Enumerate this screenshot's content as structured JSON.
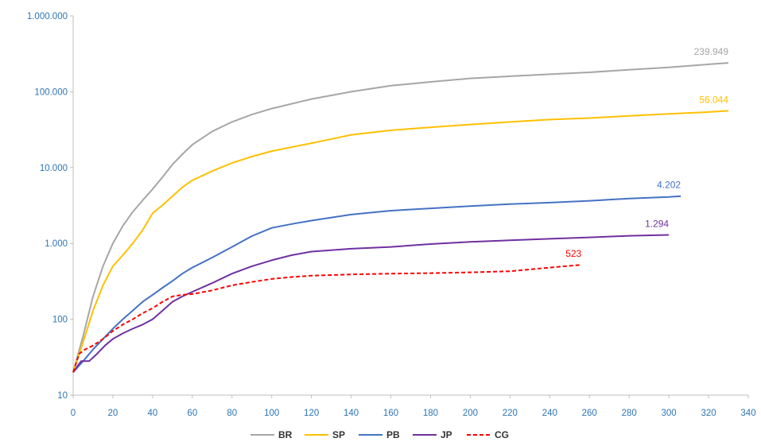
{
  "chart_data": {
    "type": "line",
    "title": "",
    "xlabel": "",
    "ylabel": "",
    "xlim": [
      0,
      340
    ],
    "ylim": [
      10,
      1000000
    ],
    "yscale": "log",
    "grid": false,
    "legend_position": "bottom",
    "x_ticks": [
      "0",
      "20",
      "40",
      "60",
      "80",
      "100",
      "120",
      "140",
      "160",
      "180",
      "200",
      "220",
      "240",
      "260",
      "280",
      "300",
      "320",
      "340"
    ],
    "y_ticks": [
      "10",
      "100",
      "1.000",
      "10.000",
      "100.000",
      "1.000.000"
    ],
    "y_tick_values": [
      10,
      100,
      1000,
      10000,
      100000,
      1000000
    ],
    "series": [
      {
        "name": "BR",
        "color": "#a6a6a6",
        "dash": "solid",
        "end_label": "239.949",
        "points": [
          [
            0,
            20
          ],
          [
            5,
            60
          ],
          [
            10,
            200
          ],
          [
            15,
            500
          ],
          [
            20,
            1000
          ],
          [
            25,
            1700
          ],
          [
            30,
            2600
          ],
          [
            35,
            3700
          ],
          [
            40,
            5200
          ],
          [
            45,
            7500
          ],
          [
            50,
            11000
          ],
          [
            55,
            15000
          ],
          [
            60,
            20000
          ],
          [
            70,
            30000
          ],
          [
            80,
            40000
          ],
          [
            90,
            50000
          ],
          [
            100,
            60000
          ],
          [
            120,
            80000
          ],
          [
            140,
            100000
          ],
          [
            160,
            120000
          ],
          [
            180,
            135000
          ],
          [
            200,
            150000
          ],
          [
            220,
            160000
          ],
          [
            240,
            170000
          ],
          [
            260,
            180000
          ],
          [
            280,
            195000
          ],
          [
            300,
            210000
          ],
          [
            320,
            230000
          ],
          [
            330,
            239949
          ]
        ]
      },
      {
        "name": "SP",
        "color": "#ffc000",
        "dash": "solid",
        "end_label": "56.044",
        "points": [
          [
            0,
            20
          ],
          [
            5,
            50
          ],
          [
            10,
            130
          ],
          [
            15,
            280
          ],
          [
            20,
            500
          ],
          [
            25,
            700
          ],
          [
            30,
            1000
          ],
          [
            35,
            1500
          ],
          [
            40,
            2500
          ],
          [
            45,
            3200
          ],
          [
            50,
            4200
          ],
          [
            55,
            5500
          ],
          [
            60,
            6800
          ],
          [
            70,
            9000
          ],
          [
            80,
            11500
          ],
          [
            90,
            14000
          ],
          [
            100,
            16500
          ],
          [
            120,
            21000
          ],
          [
            134,
            25000
          ],
          [
            140,
            27000
          ],
          [
            160,
            31000
          ],
          [
            180,
            34000
          ],
          [
            200,
            37000
          ],
          [
            220,
            40000
          ],
          [
            240,
            43000
          ],
          [
            260,
            45000
          ],
          [
            280,
            48000
          ],
          [
            300,
            51000
          ],
          [
            320,
            54000
          ],
          [
            330,
            56044
          ]
        ]
      },
      {
        "name": "PB",
        "color": "#4472c4",
        "dash": "solid",
        "end_label": "4.202",
        "points": [
          [
            0,
            20
          ],
          [
            5,
            28
          ],
          [
            10,
            40
          ],
          [
            15,
            55
          ],
          [
            20,
            75
          ],
          [
            25,
            100
          ],
          [
            30,
            130
          ],
          [
            35,
            170
          ],
          [
            40,
            210
          ],
          [
            45,
            260
          ],
          [
            50,
            320
          ],
          [
            55,
            400
          ],
          [
            60,
            480
          ],
          [
            70,
            650
          ],
          [
            80,
            900
          ],
          [
            90,
            1250
          ],
          [
            100,
            1600
          ],
          [
            110,
            1800
          ],
          [
            120,
            2000
          ],
          [
            140,
            2400
          ],
          [
            160,
            2700
          ],
          [
            180,
            2900
          ],
          [
            200,
            3100
          ],
          [
            220,
            3300
          ],
          [
            240,
            3450
          ],
          [
            260,
            3650
          ],
          [
            280,
            3900
          ],
          [
            300,
            4100
          ],
          [
            306,
            4202
          ]
        ]
      },
      {
        "name": "JP",
        "color": "#7030a0",
        "dash": "solid",
        "end_label": "1.294",
        "points": [
          [
            0,
            20
          ],
          [
            4,
            28
          ],
          [
            8,
            28
          ],
          [
            12,
            35
          ],
          [
            16,
            45
          ],
          [
            20,
            55
          ],
          [
            25,
            65
          ],
          [
            30,
            75
          ],
          [
            35,
            85
          ],
          [
            40,
            100
          ],
          [
            45,
            130
          ],
          [
            50,
            170
          ],
          [
            55,
            200
          ],
          [
            60,
            230
          ],
          [
            70,
            300
          ],
          [
            80,
            400
          ],
          [
            90,
            500
          ],
          [
            100,
            600
          ],
          [
            110,
            700
          ],
          [
            120,
            780
          ],
          [
            140,
            850
          ],
          [
            160,
            900
          ],
          [
            180,
            980
          ],
          [
            200,
            1050
          ],
          [
            220,
            1100
          ],
          [
            240,
            1150
          ],
          [
            260,
            1200
          ],
          [
            280,
            1260
          ],
          [
            300,
            1294
          ]
        ]
      },
      {
        "name": "CG",
        "color": "#ff0000",
        "dash": "dashed",
        "end_label": "523",
        "points": [
          [
            0,
            20
          ],
          [
            3,
            35
          ],
          [
            6,
            40
          ],
          [
            10,
            45
          ],
          [
            15,
            55
          ],
          [
            20,
            70
          ],
          [
            25,
            85
          ],
          [
            30,
            100
          ],
          [
            35,
            120
          ],
          [
            40,
            140
          ],
          [
            45,
            170
          ],
          [
            50,
            200
          ],
          [
            55,
            210
          ],
          [
            60,
            215
          ],
          [
            70,
            240
          ],
          [
            80,
            280
          ],
          [
            90,
            310
          ],
          [
            100,
            340
          ],
          [
            110,
            360
          ],
          [
            120,
            375
          ],
          [
            140,
            390
          ],
          [
            160,
            400
          ],
          [
            180,
            405
          ],
          [
            200,
            415
          ],
          [
            220,
            430
          ],
          [
            240,
            480
          ],
          [
            256,
            523
          ]
        ]
      }
    ]
  }
}
